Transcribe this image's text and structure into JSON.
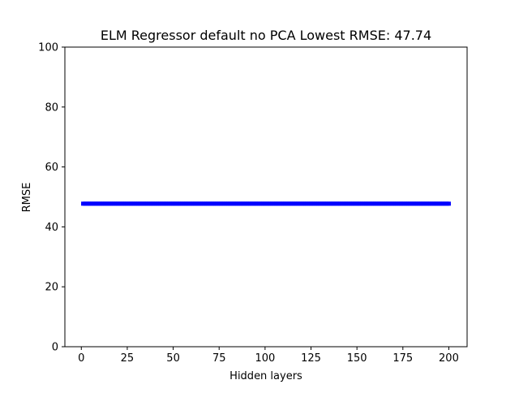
{
  "chart_data": {
    "type": "scatter",
    "title": "ELM Regressor default no PCA Lowest RMSE: 47.74",
    "xlabel": "Hidden layers",
    "ylabel": "RMSE",
    "xlim": [
      -8.95,
      209.95
    ],
    "ylim": [
      0,
      100
    ],
    "x_ticks": [
      0,
      25,
      50,
      75,
      100,
      125,
      150,
      175,
      200
    ],
    "y_ticks": [
      0,
      20,
      40,
      60,
      80,
      100
    ],
    "grid": false,
    "legend": "none",
    "marker_color": "#0000ff",
    "series": [
      {
        "x_start": 1,
        "x_end": 200,
        "x_step": 1,
        "y": 47.74
      }
    ]
  }
}
